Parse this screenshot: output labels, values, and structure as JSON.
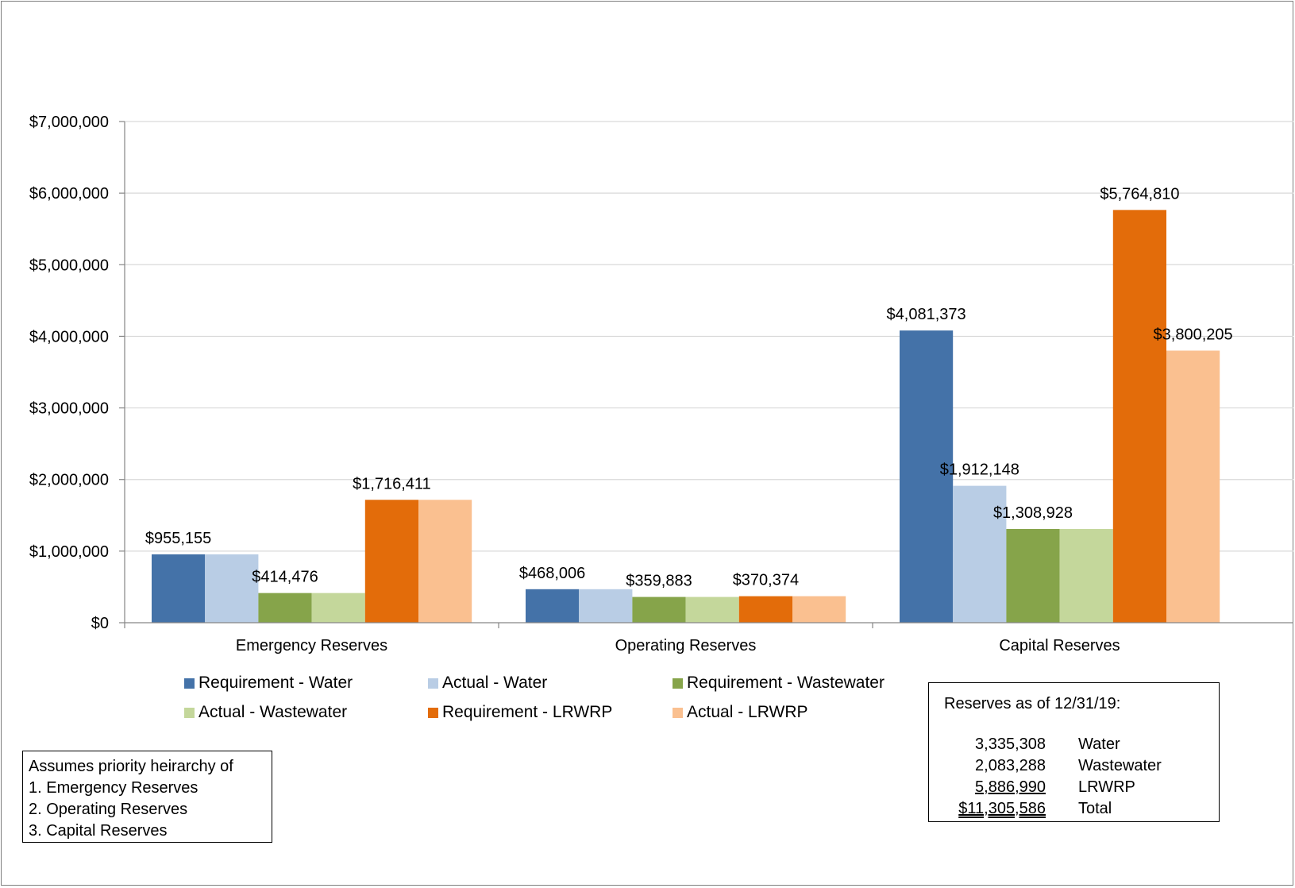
{
  "chart_data": {
    "type": "bar",
    "categories": [
      "Emergency Reserves",
      "Operating Reserves",
      "Capital Reserves"
    ],
    "series": [
      {
        "name": "Requirement - Water",
        "color": "#4472a8",
        "values": [
          955155,
          468006,
          4081373
        ],
        "labels": [
          "$955,155",
          "$468,006",
          "$4,081,373"
        ]
      },
      {
        "name": "Actual - Water",
        "color": "#b9cde5",
        "values": [
          955155,
          468006,
          1912148
        ],
        "labels": [
          "",
          "",
          "$1,912,148"
        ]
      },
      {
        "name": "Requirement - Wastewater",
        "color": "#86a44a",
        "values": [
          414476,
          359883,
          1308928
        ],
        "labels": [
          "$414,476",
          "$359,883",
          "$1,308,928"
        ]
      },
      {
        "name": "Actual - Wastewater",
        "color": "#c4d79b",
        "values": [
          414476,
          359883,
          1308928
        ],
        "labels": [
          "",
          "",
          ""
        ]
      },
      {
        "name": "Requirement - LRWRP",
        "color": "#e36c0a",
        "values": [
          1716411,
          370374,
          5764810
        ],
        "labels": [
          "$1,716,411",
          "$370,374",
          "$5,764,810"
        ]
      },
      {
        "name": "Actual - LRWRP",
        "color": "#fac090",
        "values": [
          1716411,
          370374,
          3800205
        ],
        "labels": [
          "",
          "",
          "$3,800,205"
        ]
      }
    ],
    "ylim": [
      0,
      7000000
    ],
    "yticks": [
      "$0",
      "$1,000,000",
      "$2,000,000",
      "$3,000,000",
      "$4,000,000",
      "$5,000,000",
      "$6,000,000",
      "$7,000,000"
    ],
    "grid": true,
    "legend": "bottom"
  },
  "note": {
    "lines": [
      "Assumes priority heirarchy of",
      "1. Emergency Reserves",
      "2. Operating Reserves",
      "3. Capital Reserves"
    ]
  },
  "summary": {
    "title": "Reserves as of 12/31/19:",
    "rows": [
      {
        "amount": "3,335,308",
        "label": "Water"
      },
      {
        "amount": "2,083,288",
        "label": "Wastewater"
      },
      {
        "amount": "5,886,990",
        "label": "LRWRP"
      },
      {
        "amount": "$11,305,586",
        "label": "Total"
      }
    ]
  }
}
